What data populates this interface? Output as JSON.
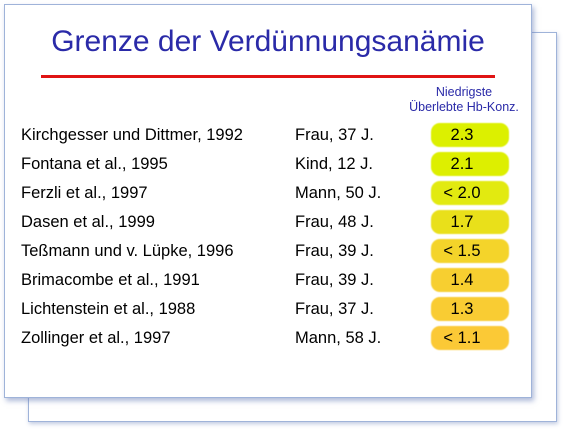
{
  "slide": {
    "title": "Grenze der Verdünnungsanämie",
    "column_header_line1": "Niedrigste",
    "column_header_line2": "Überlebte Hb-Konz."
  },
  "rows": [
    {
      "study": "Kirchgesser und Dittmer, 1992",
      "patient": "Frau, 37 J.",
      "value": "2.3",
      "highlight": "#dcf000"
    },
    {
      "study": "Fontana et al., 1995",
      "patient": "Kind, 12 J.",
      "value": "2.1",
      "highlight": "#ddef00"
    },
    {
      "study": "Ferzli et al., 1997",
      "patient": "Mann, 50 J.",
      "value": "< 2.0",
      "highlight": "#e2ea10"
    },
    {
      "study": "Dasen et al., 1999",
      "patient": "Frau, 48 J.",
      "value": "1.7",
      "highlight": "#e9e01a"
    },
    {
      "study": "Teßmann und v. Lüpke, 1996",
      "patient": "Frau, 39 J.",
      "value": "< 1.5",
      "highlight": "#f4d42a"
    },
    {
      "study": "Brimacombe et al., 1991",
      "patient": "Frau, 39 J.",
      "value": "1.4",
      "highlight": "#f7cf30"
    },
    {
      "study": "Lichtenstein et al., 1988",
      "patient": "Frau, 37 J.",
      "value": "1.3",
      "highlight": "#f9cc33"
    },
    {
      "study": "Zollinger et al., 1997",
      "patient": "Mann, 58 J.",
      "value": "< 1.1",
      "highlight": "#fbc936"
    }
  ],
  "colors": {
    "title": "#2a2aa8",
    "rule": "#e01414",
    "text": "#000000"
  }
}
